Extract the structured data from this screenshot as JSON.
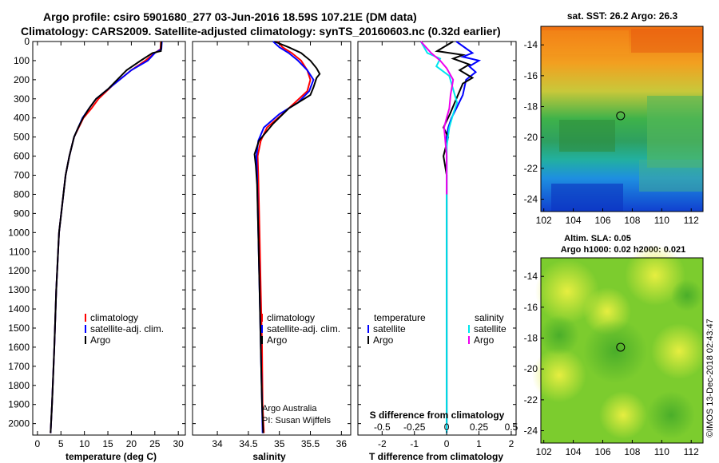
{
  "header": {
    "title_line1": "Argo profile: csiro 5901680_277 03-Jun-2016 18.59S 107.21E (DM data)",
    "title_line2": "Climatology: CARS2009. Satellite-adjusted climatology: synTS_20160603.nc (0.32d earlier)"
  },
  "colors": {
    "climatology": "#ff0000",
    "satellite": "#0000ff",
    "argo": "#000000",
    "sal_satellite": "#00e6ee",
    "sal_argo": "#ee00ee"
  },
  "depth_ticks": [
    0,
    100,
    200,
    300,
    400,
    500,
    600,
    700,
    800,
    900,
    1000,
    1100,
    1200,
    1300,
    1400,
    1500,
    1600,
    1700,
    1800,
    1900,
    2000
  ],
  "chart_data": [
    {
      "type": "line",
      "name": "temperature",
      "xlabel": "temperature (deg C)",
      "ylabel": "",
      "xlim": [
        -1,
        31.5
      ],
      "ylim": [
        2060,
        0
      ],
      "xticks": [
        0,
        5,
        10,
        15,
        20,
        25,
        30
      ],
      "legend": [
        "climatology",
        "satellite-adj. clim.",
        "Argo"
      ],
      "legend_position": "lower-right",
      "series": [
        {
          "name": "climatology",
          "color": "#ff0000",
          "x": [
            26.3,
            26.2,
            25,
            23,
            20,
            16,
            13,
            11.5,
            9.8,
            8.8,
            7.8,
            6.8,
            6,
            4.6,
            4,
            3.6,
            3.1,
            2.8
          ],
          "y": [
            0,
            40,
            60,
            100,
            150,
            230,
            300,
            350,
            400,
            450,
            500,
            600,
            700,
            1000,
            1300,
            1600,
            1900,
            2050
          ]
        },
        {
          "name": "satellite-adj. clim.",
          "color": "#0000ff",
          "x": [
            26.5,
            26.4,
            25,
            23.5,
            20,
            15,
            12.5,
            11,
            9.6,
            8.7,
            7.8,
            6.8,
            6,
            4.6,
            4,
            3.6,
            3.1,
            2.8
          ],
          "y": [
            0,
            40,
            60,
            100,
            150,
            250,
            300,
            350,
            400,
            450,
            500,
            600,
            700,
            1000,
            1300,
            1600,
            1900,
            2050
          ]
        },
        {
          "name": "Argo",
          "color": "#000000",
          "x": [
            26.4,
            26.3,
            24.5,
            22,
            19,
            15,
            12.5,
            11,
            9.7,
            8.7,
            7.8,
            6.8,
            6,
            4.6,
            4,
            3.6,
            3.1,
            2.8
          ],
          "y": [
            0,
            50,
            60,
            100,
            150,
            250,
            300,
            350,
            400,
            450,
            500,
            600,
            700,
            1000,
            1300,
            1600,
            1900,
            2050
          ]
        }
      ]
    },
    {
      "type": "line",
      "name": "salinity",
      "xlabel": "salinity",
      "ylabel": "",
      "xlim": [
        33.6,
        36.15
      ],
      "ylim": [
        2060,
        0
      ],
      "xticks": [
        34,
        34.5,
        35,
        35.5,
        36
      ],
      "xticklabels": [
        "34",
        "34.5",
        "35",
        "35.5",
        "36"
      ],
      "legend": [
        "climatology",
        "satellite-adj. clim.",
        "Argo"
      ],
      "legend_position": "lower-right",
      "annotation": [
        "Argo Australia",
        "PI: Susan Wijffels"
      ],
      "series": [
        {
          "name": "climatology",
          "color": "#ff0000",
          "x": [
            34.97,
            35.05,
            35.2,
            35.35,
            35.45,
            35.5,
            35.45,
            35.25,
            35.05,
            34.8,
            34.7,
            34.65,
            34.66,
            34.68,
            34.7,
            34.72,
            34.73,
            34.75
          ],
          "y": [
            0,
            30,
            60,
            100,
            150,
            200,
            260,
            320,
            380,
            450,
            520,
            600,
            700,
            1000,
            1300,
            1600,
            1900,
            2050
          ]
        },
        {
          "name": "satellite-adj. clim.",
          "color": "#0000ff",
          "x": [
            34.9,
            35,
            35.15,
            35.3,
            35.45,
            35.55,
            35.48,
            35.3,
            35,
            34.75,
            34.66,
            34.63,
            34.64,
            34.66,
            34.68,
            34.7,
            34.72,
            34.73
          ],
          "y": [
            0,
            30,
            60,
            100,
            150,
            200,
            260,
            320,
            380,
            450,
            520,
            600,
            700,
            1000,
            1300,
            1600,
            1900,
            2050
          ]
        },
        {
          "name": "Argo",
          "color": "#000000",
          "x": [
            34.92,
            35.15,
            35.35,
            35.5,
            35.6,
            35.65,
            35.6,
            35.58,
            35.55,
            35.5,
            35.15,
            34.9,
            34.67,
            34.6,
            34.62,
            34.64,
            34.66,
            34.68,
            34.7,
            34.72,
            34.74
          ],
          "y": [
            0,
            30,
            60,
            100,
            140,
            170,
            190,
            210,
            240,
            280,
            350,
            430,
            520,
            590,
            650,
            750,
            1000,
            1300,
            1600,
            1900,
            2050
          ]
        }
      ]
    },
    {
      "type": "line",
      "name": "differences",
      "xlabel": "T difference from climatology",
      "x2label": "S difference from climatology",
      "ylabel": "",
      "xlim": [
        -2.75,
        2.15
      ],
      "ylim": [
        2060,
        0
      ],
      "xticks": [
        -2,
        -1,
        0,
        1,
        2
      ],
      "x2ticks": [
        -0.5,
        -0.25,
        0,
        0.25,
        0.5
      ],
      "x2ticklabels": [
        "-0.5",
        "-0.25",
        "0",
        "0.25",
        "0.5"
      ],
      "x2lim": [
        -0.6875,
        0.5375
      ],
      "legend_temperature": {
        "header": "temperature",
        "items": [
          "satellite",
          "Argo"
        ]
      },
      "legend_salinity": {
        "header": "salinity",
        "items": [
          "satellite",
          "Argo"
        ]
      },
      "series": [
        {
          "name": "temperature satellite",
          "color": "#0000ff",
          "x": [
            0.3,
            0.8,
            0.5,
            1,
            0.7,
            0.9,
            0.6,
            0.5,
            0.3,
            0.15,
            0.05,
            0.0,
            0,
            0,
            0
          ],
          "y": [
            0,
            60,
            80,
            100,
            130,
            160,
            200,
            280,
            350,
            400,
            450,
            500,
            700,
            1000,
            2050
          ]
        },
        {
          "name": "temperature Argo",
          "color": "#000000",
          "x": [
            0.2,
            -0.3,
            0.5,
            0.2,
            0.7,
            0.4,
            0.8,
            0.5,
            0.4,
            0.3,
            0.1,
            -0.1,
            0.05,
            -0.1,
            0.0,
            0,
            0
          ],
          "y": [
            0,
            50,
            70,
            90,
            120,
            150,
            190,
            220,
            260,
            300,
            380,
            450,
            500,
            600,
            700,
            1000,
            2000
          ]
        },
        {
          "name": "salinity satellite",
          "color": "#00e6ee",
          "x": [
            -0.2,
            -0.15,
            -0.05,
            -0.08,
            0.02,
            0.05,
            0.08,
            0.05,
            0.02,
            0.0,
            0.0,
            0
          ],
          "y": [
            0,
            60,
            90,
            130,
            180,
            250,
            320,
            380,
            450,
            550,
            800,
            2050
          ]
        },
        {
          "name": "salinity Argo",
          "color": "#ee00ee",
          "x": [
            -0.2,
            -0.12,
            -0.05,
            0.0,
            0.05,
            0.03,
            0.02,
            0.0,
            -0.02,
            0.0,
            0
          ],
          "y": [
            0,
            60,
            100,
            140,
            200,
            280,
            350,
            400,
            450,
            600,
            800
          ]
        }
      ]
    }
  ],
  "maps": {
    "sst": {
      "title": "sat. SST: 26.2 Argo: 26.3",
      "xticks": [
        102,
        104,
        106,
        108,
        110,
        112
      ],
      "yticks": [
        -14,
        -16,
        -18,
        -20,
        -22,
        -24
      ],
      "xlim": [
        101.8,
        112.8
      ],
      "ylim": [
        -24.8,
        -12.8
      ],
      "marker": {
        "lon": 107.21,
        "lat": -18.59
      }
    },
    "sla": {
      "title_line1": "Altim. SLA: 0.05",
      "title_line2": "Argo h1000: 0.02 h2000: 0.021",
      "xticks": [
        102,
        104,
        106,
        108,
        110,
        112
      ],
      "yticks": [
        -14,
        -16,
        -18,
        -20,
        -22,
        -24
      ],
      "xlim": [
        101.8,
        112.8
      ],
      "ylim": [
        -24.8,
        -12.8
      ],
      "marker": {
        "lon": 107.21,
        "lat": -18.59
      }
    }
  },
  "footer": {
    "stamp": "©IMOS 13-Dec-2018 02:43:47"
  }
}
